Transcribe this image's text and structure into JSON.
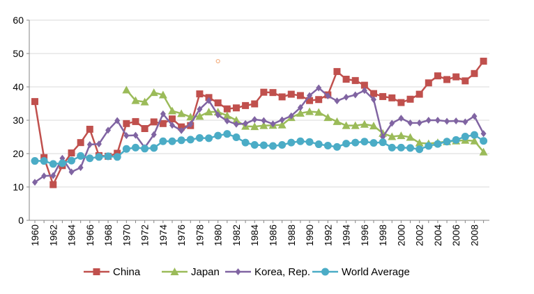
{
  "chart_data": {
    "type": "line",
    "title": "",
    "xlabel": "",
    "ylabel": "",
    "ylim": [
      0,
      60
    ],
    "yticks": [
      0,
      10,
      20,
      30,
      40,
      50,
      60
    ],
    "ytick_labels": [
      "0",
      "10",
      "20",
      "30",
      "40",
      "50",
      "60"
    ],
    "xlim": [
      1960,
      2009
    ],
    "xticks": [
      1960,
      1962,
      1964,
      1966,
      1968,
      1970,
      1972,
      1974,
      1976,
      1978,
      1980,
      1982,
      1984,
      1986,
      1988,
      1990,
      1992,
      1994,
      1996,
      1998,
      2000,
      2002,
      2004,
      2006,
      2008
    ],
    "xtick_labels": [
      "1960",
      "1962",
      "1964",
      "1966",
      "1968",
      "1970",
      "1972",
      "1974",
      "1976",
      "1978",
      "1980",
      "1982",
      "1984",
      "1986",
      "1988",
      "1990",
      "1992",
      "1994",
      "1996",
      "1998",
      "2000",
      "2002",
      "2004",
      "2006",
      "2008"
    ],
    "grid": "horizontal",
    "legend": "bottom",
    "series": [
      {
        "name": "China",
        "color": "#c0504d",
        "marker": "square",
        "x_start": 1960,
        "values": [
          35.6,
          18.8,
          10.7,
          16.4,
          20.2,
          23.3,
          27.3,
          19.4,
          19.2,
          20.1,
          29.0,
          29.6,
          27.5,
          29.5,
          29.0,
          30.4,
          28.0,
          28.4,
          37.9,
          36.8,
          35.2,
          33.4,
          33.7,
          34.4,
          34.9,
          38.4,
          38.3,
          37.0,
          37.8,
          37.4,
          35.9,
          36.2,
          37.6,
          44.6,
          42.3,
          41.9,
          40.5,
          38.0,
          37.1,
          36.7,
          35.3,
          36.3,
          37.8,
          41.2,
          43.3,
          42.2,
          43.0,
          41.8,
          44.0,
          47.7
        ]
      },
      {
        "name": "Japan",
        "color": "#9bbb59",
        "marker": "triangle",
        "x_start": 1970,
        "values": [
          39.1,
          35.9,
          35.5,
          38.3,
          37.6,
          32.8,
          32.0,
          31.0,
          31.2,
          32.5,
          32.5,
          31.4,
          30.0,
          28.2,
          28.1,
          28.4,
          28.5,
          28.6,
          30.8,
          32.1,
          32.6,
          32.4,
          30.8,
          29.6,
          28.4,
          28.4,
          28.8,
          28.3,
          26.1,
          25.1,
          25.4,
          24.9,
          23.2,
          23.0,
          23.3,
          23.6,
          23.8,
          24.0,
          23.8,
          20.5
        ]
      },
      {
        "name": "Korea, Rep.",
        "color": "#8064a2",
        "marker": "diamond",
        "x_start": 1960,
        "values": [
          11.4,
          13.3,
          13.4,
          18.6,
          14.5,
          15.8,
          22.7,
          22.9,
          27.0,
          29.9,
          25.4,
          25.5,
          21.8,
          25.7,
          31.9,
          28.5,
          26.9,
          28.8,
          33.3,
          35.9,
          31.6,
          29.8,
          28.8,
          29.0,
          30.2,
          29.9,
          28.9,
          30.1,
          31.3,
          33.8,
          37.4,
          39.7,
          37.3,
          35.8,
          36.9,
          37.6,
          38.9,
          36.2,
          25.0,
          29.1,
          30.6,
          29.2,
          29.2,
          30.0,
          30.0,
          29.7,
          29.8,
          29.5,
          31.2,
          26.0
        ]
      },
      {
        "name": "World Average",
        "color": "#4bacc6",
        "marker": "circle",
        "x_start": 1960,
        "values": [
          17.8,
          17.8,
          16.9,
          17.1,
          17.9,
          19.3,
          18.6,
          19.0,
          19.2,
          19.0,
          21.4,
          21.8,
          21.5,
          21.7,
          23.7,
          23.7,
          24.0,
          24.2,
          24.7,
          24.6,
          25.4,
          25.9,
          24.9,
          23.3,
          22.6,
          22.5,
          22.3,
          22.6,
          23.3,
          23.7,
          23.5,
          22.8,
          22.4,
          22.0,
          23.0,
          23.3,
          23.6,
          23.2,
          23.4,
          21.8,
          21.8,
          21.7,
          21.3,
          22.3,
          22.9,
          23.6,
          24.1,
          25.1,
          25.6,
          23.8
        ]
      }
    ],
    "annotations": [
      {
        "type": "small-circle-marker",
        "color": "#f4b183",
        "x": 1980,
        "y": 47.7
      }
    ]
  }
}
